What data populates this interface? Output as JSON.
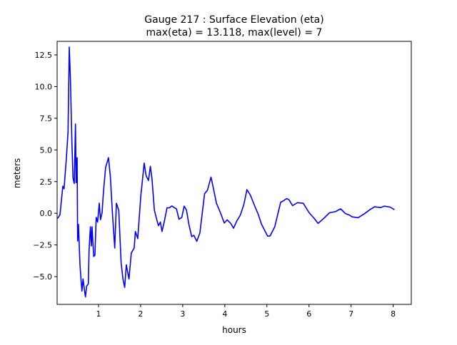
{
  "chart_data": {
    "type": "line",
    "title_line1": "Gauge 217 : Surface Elevation (eta)",
    "title_line2": "max(eta) =  13.118,    max(level) = 7",
    "xlabel": "hours",
    "ylabel": "meters",
    "xlim": [
      0.017,
      8.43
    ],
    "ylim": [
      -7.19,
      13.57
    ],
    "xticks": [
      1,
      2,
      3,
      4,
      5,
      6,
      7,
      8
    ],
    "xtick_labels": [
      "1",
      "2",
      "3",
      "4",
      "5",
      "6",
      "7",
      "8"
    ],
    "yticks": [
      -5.0,
      -2.5,
      0.0,
      2.5,
      5.0,
      7.5,
      10.0,
      12.5
    ],
    "ytick_labels": [
      "−5.0",
      "−2.5",
      "0.0",
      "2.5",
      "5.0",
      "7.5",
      "10.0",
      "12.5"
    ],
    "grid": false,
    "series": [
      {
        "name": "eta",
        "color": "#0000ff",
        "x": [
          0.029,
          0.085,
          0.153,
          0.181,
          0.237,
          0.276,
          0.305,
          0.334,
          0.368,
          0.395,
          0.424,
          0.453,
          0.469,
          0.492,
          0.503,
          0.525,
          0.559,
          0.581,
          0.605,
          0.632,
          0.661,
          0.69,
          0.717,
          0.758,
          0.775,
          0.808,
          0.831,
          0.847,
          0.886,
          0.915,
          0.944,
          0.978,
          1.017,
          1.046,
          1.085,
          1.114,
          1.169,
          1.237,
          1.283,
          1.327,
          1.385,
          1.424,
          1.48,
          1.537,
          1.581,
          1.622,
          1.661,
          1.724,
          1.78,
          1.847,
          1.876,
          1.932,
          2.005,
          2.046,
          2.085,
          2.131,
          2.186,
          2.232,
          2.271,
          2.327,
          2.385,
          2.424,
          2.469,
          2.508,
          2.571,
          2.627,
          2.683,
          2.741,
          2.853,
          2.91,
          2.978,
          3.034,
          3.09,
          3.147,
          3.215,
          3.266,
          3.334,
          3.407,
          3.52,
          3.588,
          3.673,
          3.734,
          3.802,
          3.886,
          3.988,
          4.056,
          4.141,
          4.208,
          4.283,
          4.368,
          4.452,
          4.525,
          4.605,
          4.707,
          4.792,
          4.876,
          5.017,
          5.073,
          5.186,
          5.327,
          5.385,
          5.469,
          5.525,
          5.61,
          5.724,
          5.864,
          6.005,
          6.119,
          6.215,
          6.344,
          6.486,
          6.627,
          6.751,
          6.864,
          6.966,
          7.022,
          7.164,
          7.305,
          7.446,
          7.559,
          7.7,
          7.785,
          7.927,
          8.029
        ],
        "y": [
          -0.41,
          -0.11,
          2.14,
          1.93,
          4.39,
          6.43,
          13.118,
          10.42,
          5.57,
          2.76,
          2.36,
          7.05,
          2.42,
          4.39,
          -2.19,
          -0.88,
          -4.05,
          -5.11,
          -6.14,
          -5.18,
          -5.95,
          -6.6,
          -5.76,
          -5.57,
          -2.95,
          -1.07,
          -2.58,
          -1.07,
          -3.41,
          -3.32,
          -0.32,
          -0.69,
          0.8,
          -0.51,
          0.06,
          1.56,
          3.62,
          4.39,
          2.87,
          0.24,
          -2.74,
          0.8,
          0.24,
          -3.88,
          -5.19,
          -5.85,
          -4.07,
          -5.19,
          -3.13,
          -2.75,
          -1.44,
          -2.0,
          1.37,
          2.68,
          3.96,
          2.97,
          2.59,
          3.71,
          2.68,
          0.24,
          -0.51,
          -0.98,
          -0.69,
          -1.44,
          -0.51,
          0.43,
          0.43,
          0.58,
          0.34,
          -0.47,
          -0.32,
          0.56,
          0.24,
          -0.88,
          -1.84,
          -1.74,
          -2.21,
          -1.56,
          1.54,
          1.82,
          2.85,
          1.91,
          0.79,
          0.13,
          -0.77,
          -0.52,
          -0.8,
          -1.18,
          -0.62,
          -0.15,
          0.69,
          1.86,
          1.45,
          0.6,
          -0.06,
          -0.9,
          -1.8,
          -1.8,
          -1.08,
          0.88,
          0.97,
          1.16,
          1.07,
          0.6,
          0.84,
          0.79,
          0.04,
          -0.39,
          -0.8,
          -0.43,
          0.04,
          0.13,
          0.35,
          -0.02,
          -0.15,
          -0.28,
          -0.35,
          -0.06,
          0.28,
          0.51,
          0.45,
          0.56,
          0.49,
          0.28
        ]
      }
    ]
  }
}
